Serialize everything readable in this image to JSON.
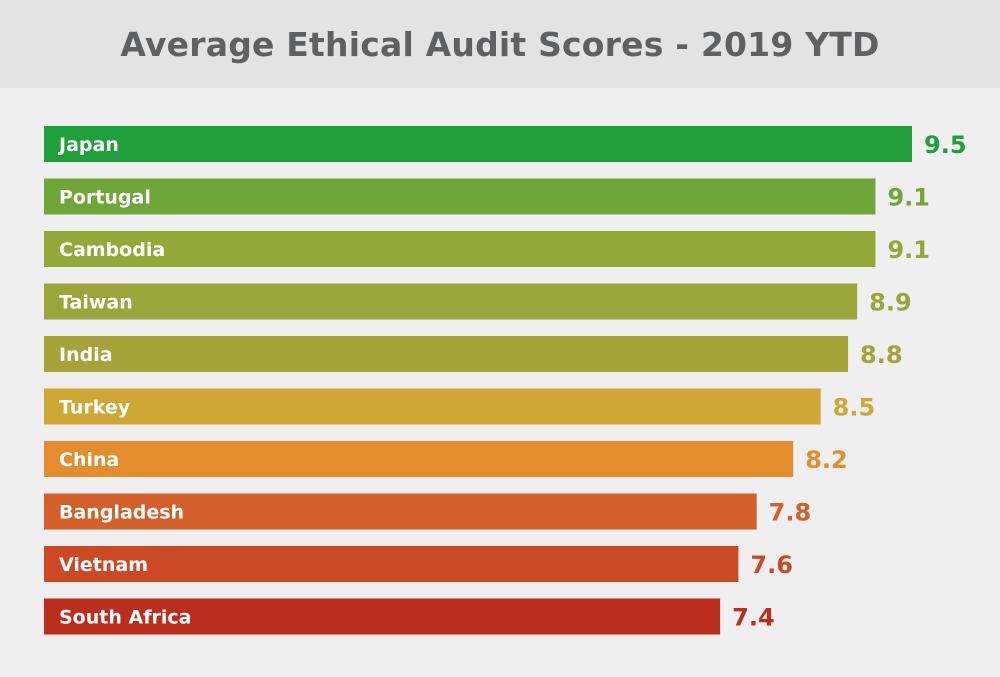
{
  "chart_data": {
    "type": "bar",
    "orientation": "horizontal",
    "title": "Average Ethical Audit Scores - 2019 YTD",
    "xlabel": "",
    "ylabel": "",
    "xlim": [
      0,
      9.5
    ],
    "grid": false,
    "categories": [
      "Japan",
      "Portugal",
      "Cambodia",
      "Taiwan",
      "India",
      "Turkey",
      "China",
      "Bangladesh",
      "Vietnam",
      "South Africa"
    ],
    "values": [
      9.5,
      9.1,
      9.1,
      8.9,
      8.8,
      8.5,
      8.2,
      7.8,
      7.6,
      7.4
    ],
    "value_labels": [
      "9.5",
      "9.1",
      "9.1",
      "8.9",
      "8.8",
      "8.5",
      "8.2",
      "7.8",
      "7.6",
      "7.4"
    ],
    "colors": [
      "#1fa03b",
      "#6fa63a",
      "#94a83a",
      "#9aa63a",
      "#a6a33a",
      "#cfa735",
      "#e38d2e",
      "#d35f2a",
      "#cb4a25",
      "#bb2e1e"
    ]
  }
}
